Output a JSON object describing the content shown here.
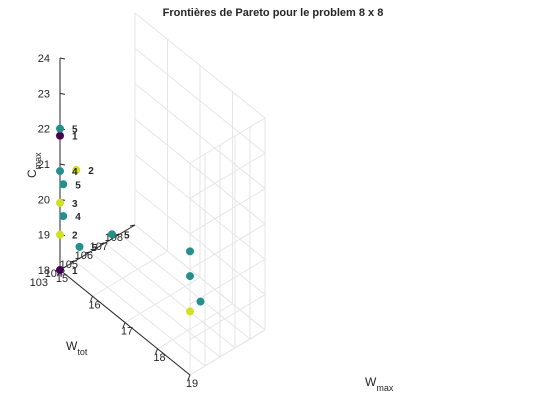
{
  "chart_data": {
    "type": "scatter",
    "projection": "3d",
    "title": "Frontières de Pareto pour le problem 8 x 8",
    "xlabel": "W",
    "xlabel_sub": "max",
    "ylabel": "W",
    "ylabel_sub": "tot",
    "zlabel": "C",
    "zlabel_sub": "max",
    "xlim": [
      15,
      19
    ],
    "ylim": [
      103,
      108
    ],
    "zlim": [
      18,
      24
    ],
    "xticks": [
      "15",
      "16",
      "17",
      "18",
      "19"
    ],
    "yticks": [
      "103",
      "104",
      "105",
      "106",
      "107",
      "108"
    ],
    "zticks": [
      "18",
      "19",
      "20",
      "21",
      "22",
      "23",
      "24"
    ],
    "grid": true,
    "colors": {
      "background": "#ffffff",
      "axis": "#262626",
      "grid": "#e6e6e6",
      "series_1": "#440154",
      "series_2": "#d2e21b",
      "series_3": "#d2e21b",
      "series_4": "#21918c",
      "series_5": "#21918c"
    },
    "points": [
      {
        "x": 15,
        "y": 103,
        "z": 21.8,
        "label": "1",
        "series": "series_1"
      },
      {
        "x": 15,
        "y": 103,
        "z": 18,
        "label": "1",
        "series": "series_1"
      },
      {
        "x": 15.5,
        "y": 103,
        "z": 21.2,
        "label": "2",
        "series": "series_2"
      },
      {
        "x": 15,
        "y": 103,
        "z": 19,
        "label": "2",
        "series": "series_2"
      },
      {
        "x": 15,
        "y": 103,
        "z": 19.9,
        "label": "3",
        "series": "series_3"
      },
      {
        "x": 15,
        "y": 103,
        "z": 20.8,
        "label": "4",
        "series": "series_4"
      },
      {
        "x": 15.1,
        "y": 103,
        "z": 19.6,
        "label": "4",
        "series": "series_4"
      },
      {
        "x": 15,
        "y": 103,
        "z": 22,
        "label": "5",
        "series": "series_5"
      },
      {
        "x": 15.1,
        "y": 103,
        "z": 20.5,
        "label": "5",
        "series": "series_5"
      },
      {
        "x": 15.6,
        "y": 103,
        "z": 19.1,
        "label": "5",
        "series": "series_5"
      },
      {
        "x": 16.6,
        "y": 103,
        "z": 20.2,
        "label": "5",
        "series": "series_5"
      },
      {
        "x": 19,
        "y": 103,
        "z": 21.5,
        "label": "",
        "series": "series_5"
      },
      {
        "x": 19,
        "y": 103,
        "z": 20.8,
        "label": "",
        "series": "series_5"
      },
      {
        "x": 19,
        "y": 103,
        "z": 19.8,
        "label": "",
        "series": "series_2"
      },
      {
        "x": 19,
        "y": 103.7,
        "z": 19.9,
        "label": "",
        "series": "series_5"
      }
    ]
  }
}
